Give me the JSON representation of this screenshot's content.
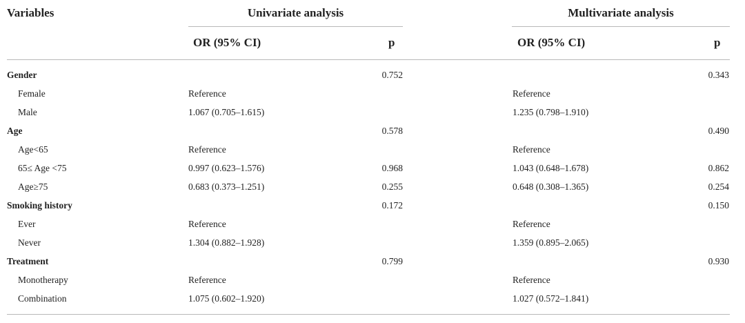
{
  "header": {
    "variables": "Variables",
    "univariate": "Univariate analysis",
    "multivariate": "Multivariate analysis",
    "or_ci_uni": "OR (95% CI)",
    "p_uni": "p",
    "or_ci_multi": "OR (95% CI)",
    "p_multi": "p"
  },
  "rows": [
    {
      "type": "cat",
      "variable": "Gender",
      "uni_or": "",
      "uni_p": "0.752",
      "multi_or": "",
      "multi_p": "0.343"
    },
    {
      "type": "lvl",
      "variable": "Female",
      "uni_or": "Reference",
      "uni_p": "",
      "multi_or": "Reference",
      "multi_p": ""
    },
    {
      "type": "lvl",
      "variable": "Male",
      "uni_or": "1.067 (0.705–1.615)",
      "uni_p": "",
      "multi_or": "1.235 (0.798–1.910)",
      "multi_p": ""
    },
    {
      "type": "cat",
      "variable": "Age",
      "uni_or": "",
      "uni_p": "0.578",
      "multi_or": "",
      "multi_p": "0.490"
    },
    {
      "type": "lvl",
      "variable": "Age<65",
      "uni_or": "Reference",
      "uni_p": "",
      "multi_or": "Reference",
      "multi_p": ""
    },
    {
      "type": "lvl",
      "variable": "65≤ Age <75",
      "uni_or": "0.997 (0.623–1.576)",
      "uni_p": "0.968",
      "multi_or": "1.043 (0.648–1.678)",
      "multi_p": "0.862"
    },
    {
      "type": "lvl",
      "variable": "Age≥75",
      "uni_or": "0.683 (0.373–1.251)",
      "uni_p": "0.255",
      "multi_or": "0.648 (0.308–1.365)",
      "multi_p": "0.254"
    },
    {
      "type": "cat",
      "variable": "Smoking history",
      "uni_or": "",
      "uni_p": "0.172",
      "multi_or": "",
      "multi_p": "0.150"
    },
    {
      "type": "lvl",
      "variable": "Ever",
      "uni_or": "Reference",
      "uni_p": "",
      "multi_or": "Reference",
      "multi_p": ""
    },
    {
      "type": "lvl",
      "variable": "Never",
      "uni_or": "1.304 (0.882–1.928)",
      "uni_p": "",
      "multi_or": "1.359 (0.895–2.065)",
      "multi_p": ""
    },
    {
      "type": "cat",
      "variable": "Treatment",
      "uni_or": "",
      "uni_p": "0.799",
      "multi_or": "",
      "multi_p": "0.930"
    },
    {
      "type": "lvl",
      "variable": "Monotherapy",
      "uni_or": "Reference",
      "uni_p": "",
      "multi_or": "Reference",
      "multi_p": ""
    },
    {
      "type": "lvl",
      "variable": "Combination",
      "uni_or": "1.075 (0.602–1.920)",
      "uni_p": "",
      "multi_or": "1.027 (0.572–1.841)",
      "multi_p": ""
    }
  ]
}
